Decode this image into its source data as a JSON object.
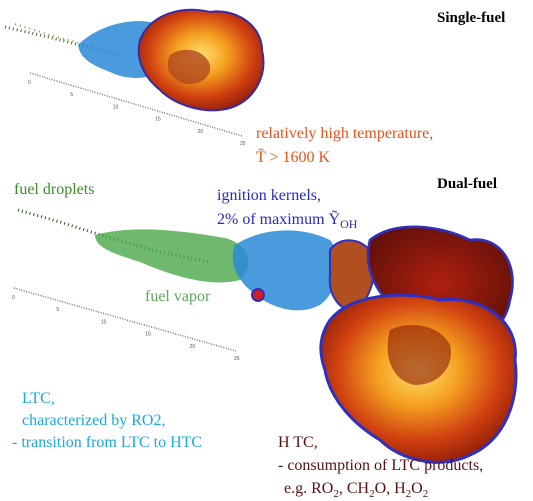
{
  "labels": {
    "single_fuel": "Single-fuel",
    "dual_fuel": "Dual-fuel",
    "high_temp": [
      "relatively high temperature,",
      "T̃ > 1600 K"
    ],
    "fuel_droplets": "fuel droplets",
    "ignition_kernels": [
      "ignition kernels,",
      "2% of maximum Ỹ",
      "OH"
    ],
    "fuel_vapor": "fuel vapor",
    "ltc": [
      "LTC,",
      "characterized by RO2,",
      "- transition from LTC to HTC"
    ],
    "htc": [
      "H TC,",
      "- consumption of LTC products,"
    ],
    "htc_products": [
      "e.g. RO",
      "2",
      ", CH",
      "2",
      "O, H",
      "2",
      "O",
      "2"
    ]
  },
  "rulers": {
    "top": {
      "ticks": [
        0,
        5,
        10,
        15,
        20,
        25
      ]
    },
    "bottom": {
      "ticks": [
        0,
        5,
        10,
        15,
        20,
        25
      ]
    }
  }
}
